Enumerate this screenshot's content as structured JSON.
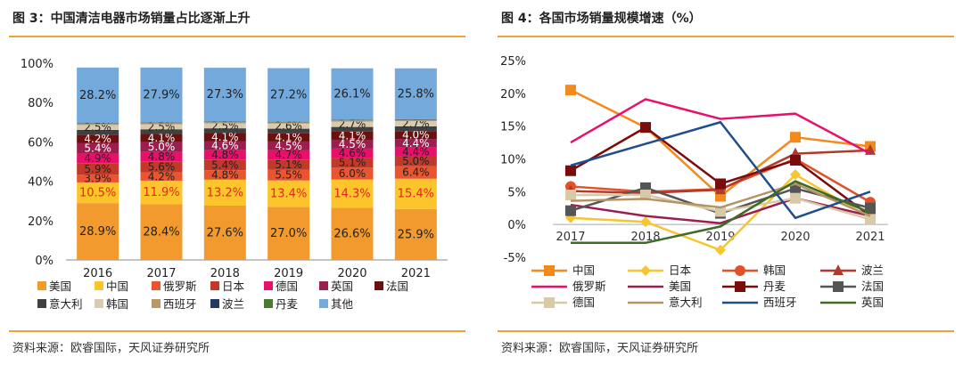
{
  "left": {
    "title": "图 3：中国清洁电器市场销量占比逐渐上升",
    "source": "资料来源：欧睿国际，天风证券研究所"
  },
  "right": {
    "title": "图 4：各国市场销量规模增速（%）",
    "source": "资料来源：欧睿国际，天风证券研究所"
  },
  "chart_data": [
    {
      "type": "bar",
      "stacked": true,
      "categories": [
        "2016",
        "2017",
        "2018",
        "2019",
        "2020",
        "2021"
      ],
      "ylim": [
        0,
        100
      ],
      "yticks": [
        "0%",
        "20%",
        "40%",
        "60%",
        "80%",
        "100%"
      ],
      "legend_position": "bottom",
      "series": [
        {
          "name": "美国",
          "color": "#f29a2e",
          "values": [
            28.9,
            28.4,
            27.6,
            27.0,
            26.6,
            25.9
          ],
          "labels": [
            "28.9%",
            "28.4%",
            "27.6%",
            "27.0%",
            "26.6%",
            "25.9%"
          ],
          "label_color": "#222222"
        },
        {
          "name": "中国",
          "color": "#fcc52b",
          "values": [
            10.5,
            11.9,
            13.2,
            13.4,
            14.3,
            15.4
          ],
          "labels": [
            "10.5%",
            "11.9%",
            "13.2%",
            "13.4%",
            "14.3%",
            "15.4%"
          ],
          "label_color": "#e0281d"
        },
        {
          "name": "俄罗斯",
          "color": "#e8552f",
          "values": [
            3.9,
            4.2,
            4.8,
            5.5,
            6.0,
            6.4
          ],
          "labels": [
            "3.9%",
            "4.2%",
            "4.8%",
            "5.5%",
            "6.0%",
            "6.4%"
          ],
          "label_color": "#222222"
        },
        {
          "name": "日本",
          "color": "#c0392b",
          "values": [
            5.9,
            5.6,
            5.4,
            5.1,
            5.1,
            5.0
          ],
          "labels": [
            "5.9%",
            "5.6%",
            "5.4%",
            "5.1%",
            "5.1%",
            "5.0%"
          ],
          "label_color": "#222222"
        },
        {
          "name": "德国",
          "color": "#e8106a",
          "values": [
            4.9,
            4.8,
            4.8,
            4.7,
            4.6,
            4.4
          ],
          "labels": [
            "4.9%",
            "4.8%",
            "4.8%",
            "4.7%",
            "4.6%",
            "4.4%"
          ],
          "label_color": "#222222"
        },
        {
          "name": "英国",
          "color": "#9a1f4e",
          "values": [
            5.4,
            5.0,
            4.6,
            4.5,
            4.5,
            4.4
          ],
          "labels": [
            "5.4%",
            "5.0%",
            "4.6%",
            "4.5%",
            "4.5%",
            "4.4%"
          ],
          "label_color": "#ffffff"
        },
        {
          "name": "法国",
          "color": "#6b0f0f",
          "values": [
            4.2,
            4.1,
            4.1,
            4.1,
            4.1,
            4.0
          ],
          "labels": [
            "4.2%",
            "4.1%",
            "4.1%",
            "4.1%",
            "4.1%",
            "4.0%"
          ],
          "label_color": "#ffffff"
        },
        {
          "name": "意大利",
          "color": "#404040",
          "values": [
            2.4,
            2.4,
            2.4,
            2.4,
            2.4,
            2.4
          ],
          "labels": [
            "",
            "",
            "",
            "",
            "",
            ""
          ],
          "label_color": "#ffffff"
        },
        {
          "name": "韩国",
          "color": "#d9cbb0",
          "values": [
            2.5,
            2.5,
            2.5,
            2.6,
            2.7,
            2.7
          ],
          "labels": [
            "2.5%",
            "2.5%",
            "2.5%",
            "2.6%",
            "2.7%",
            "2.7%"
          ],
          "label_color": "#222222"
        },
        {
          "name": "西班牙",
          "color": "#b89868",
          "values": [
            0.7,
            0.7,
            0.7,
            0.7,
            0.7,
            0.7
          ],
          "labels": [
            "",
            "",
            "",
            "",
            "",
            ""
          ],
          "label_color": "#222222"
        },
        {
          "name": "波兰",
          "color": "#1f3864",
          "values": [
            0.2,
            0.2,
            0.2,
            0.2,
            0.2,
            0.2
          ],
          "labels": [
            "",
            "",
            "",
            "",
            "",
            ""
          ],
          "label_color": "#ffffff"
        },
        {
          "name": "丹麦",
          "color": "#4a7c2f",
          "values": [
            0.1,
            0.1,
            0.1,
            0.1,
            0.1,
            0.1
          ],
          "labels": [
            "",
            "",
            "",
            "",
            "",
            ""
          ],
          "label_color": "#ffffff"
        },
        {
          "name": "其他",
          "color": "#74a9dc",
          "values": [
            28.2,
            27.9,
            27.3,
            27.2,
            26.1,
            25.8
          ],
          "labels": [
            "28.2%",
            "27.9%",
            "27.3%",
            "27.2%",
            "26.1%",
            "25.8%"
          ],
          "label_color": "#222222"
        }
      ]
    },
    {
      "type": "line",
      "x": [
        "2017",
        "2018",
        "2019",
        "2020",
        "2021"
      ],
      "ylim": [
        -5,
        25
      ],
      "yticks": [
        -5,
        0,
        5,
        10,
        15,
        20,
        25
      ],
      "ytick_labels": [
        "-5%",
        "0%",
        "5%",
        "10%",
        "15%",
        "20%",
        "25%"
      ],
      "grid": false,
      "legend_position": "bottom",
      "series": [
        {
          "name": "中国",
          "color": "#f28a1e",
          "marker": "square",
          "values": [
            20.5,
            14.8,
            4.3,
            13.3,
            11.9
          ]
        },
        {
          "name": "日本",
          "color": "#f7c531",
          "marker": "diamond",
          "values": [
            1.0,
            0.4,
            -3.9,
            7.6,
            1.0
          ]
        },
        {
          "name": "韩国",
          "color": "#e0522a",
          "marker": "circle",
          "values": [
            5.8,
            5.0,
            5.4,
            10.0,
            3.4
          ]
        },
        {
          "name": "波兰",
          "color": "#b03a2e",
          "marker": "triangle",
          "values": [
            5.1,
            4.8,
            5.3,
            10.8,
            11.3
          ]
        },
        {
          "name": "俄罗斯",
          "color": "#e8106a",
          "marker": "none",
          "values": [
            12.5,
            19.1,
            16.1,
            16.9,
            10.8
          ]
        },
        {
          "name": "美国",
          "color": "#9a1f4e",
          "marker": "none",
          "values": [
            3.0,
            1.3,
            0.2,
            4.0,
            1.3
          ]
        },
        {
          "name": "丹麦",
          "color": "#7a0c0c",
          "marker": "square",
          "values": [
            8.2,
            14.8,
            6.2,
            9.8,
            1.3
          ]
        },
        {
          "name": "法国",
          "color": "#555555",
          "marker": "square",
          "values": [
            2.1,
            5.6,
            1.7,
            5.5,
            2.5
          ]
        },
        {
          "name": "德国",
          "color": "#d8c9a8",
          "marker": "square",
          "values": [
            4.5,
            4.5,
            2.0,
            4.0,
            0.8
          ]
        },
        {
          "name": "意大利",
          "color": "#b59463",
          "marker": "none",
          "values": [
            3.6,
            3.9,
            2.6,
            6.2,
            1.3
          ]
        },
        {
          "name": "西班牙",
          "color": "#1f4e8c",
          "marker": "none",
          "values": [
            9.0,
            12.3,
            15.6,
            1.0,
            5.0
          ]
        },
        {
          "name": "英国",
          "color": "#3f6b27",
          "marker": "none",
          "values": [
            -2.8,
            -2.8,
            -0.3,
            6.6,
            1.8
          ]
        }
      ]
    }
  ]
}
